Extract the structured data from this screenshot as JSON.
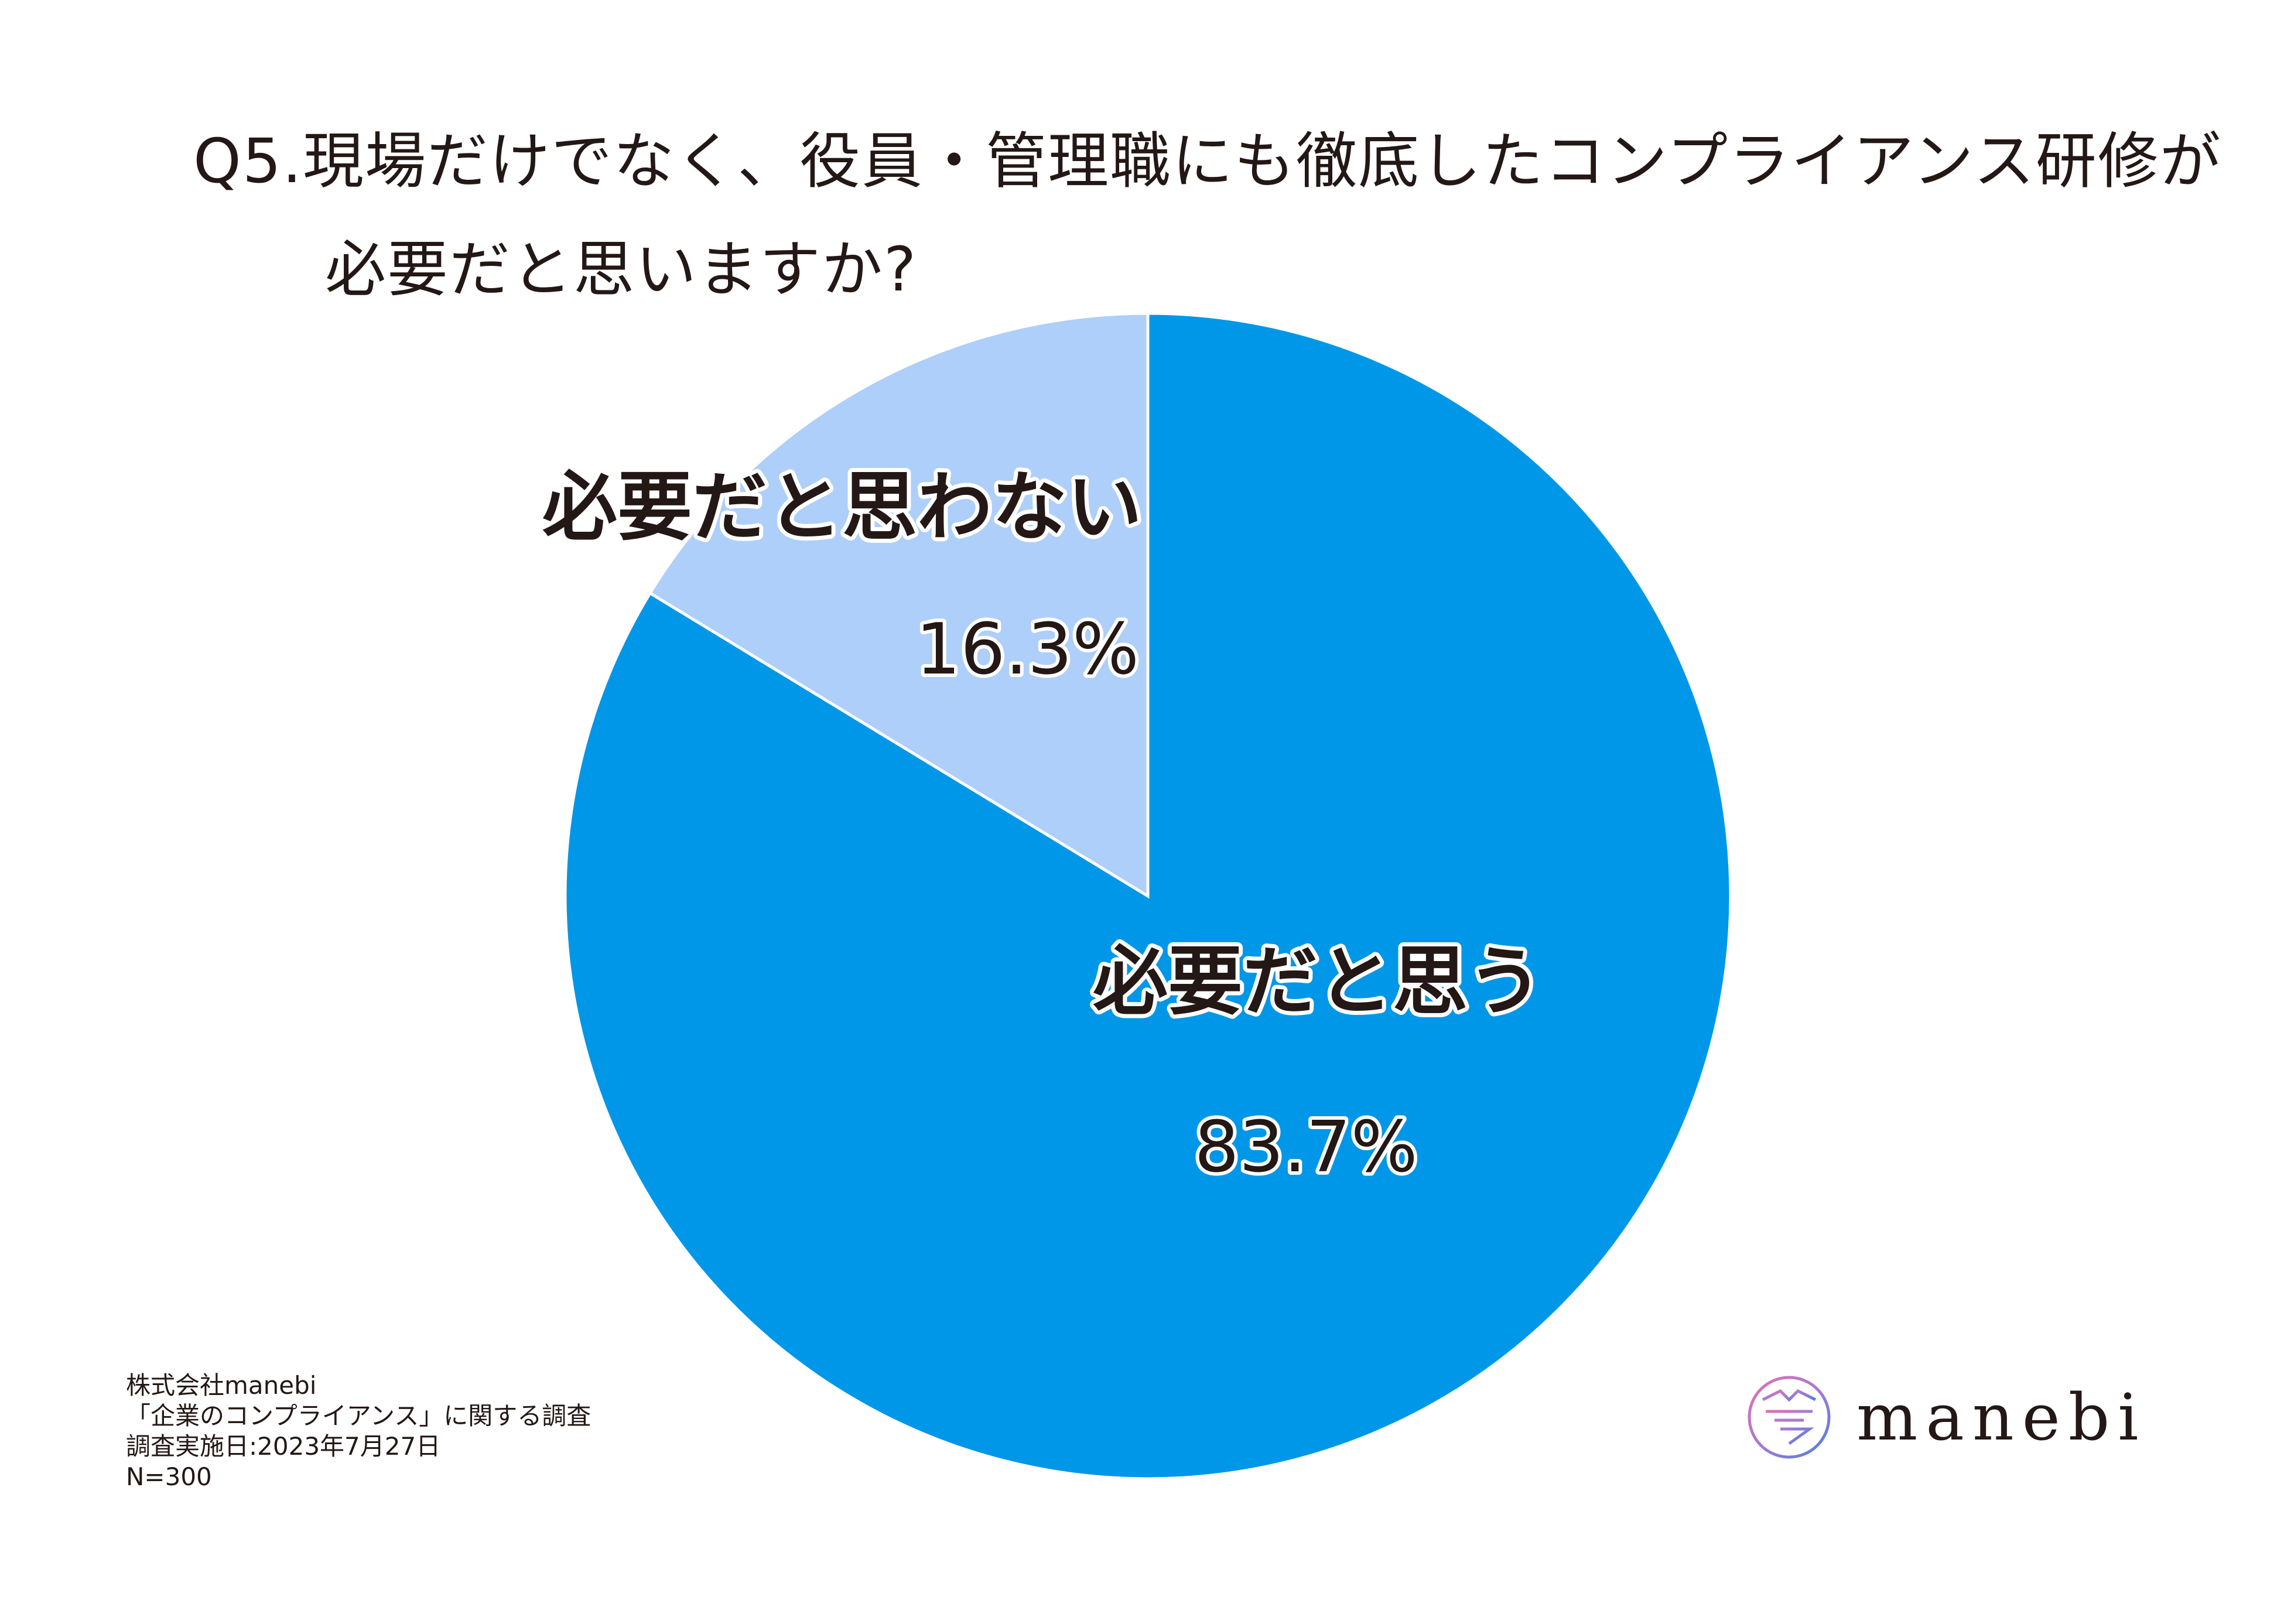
{
  "title": {
    "line1": "Q5.現場だけでなく、役員・管理職にも徹底したコンプライアンス研修が",
    "line2": "必要だと思いますか?"
  },
  "chart_data": {
    "type": "pie",
    "title": "Q5.現場だけでなく、役員・管理職にも徹底したコンプライアンス研修が必要だと思いますか?",
    "slices": [
      {
        "label": "必要だと思う",
        "value": 83.7,
        "value_label": "83.7%",
        "color": "#0097e8"
      },
      {
        "label": "必要だと思わない",
        "value": 16.3,
        "value_label": "16.3%",
        "color": "#aecffa"
      }
    ]
  },
  "footnote": {
    "line1": "株式会社manebi",
    "line2": "「企業のコンプライアンス」に関する調査",
    "line3": "調査実施日:2023年7月27日",
    "line4": "N=300"
  },
  "logo": {
    "text": "manebi",
    "icon": "manebi-logo-icon"
  }
}
